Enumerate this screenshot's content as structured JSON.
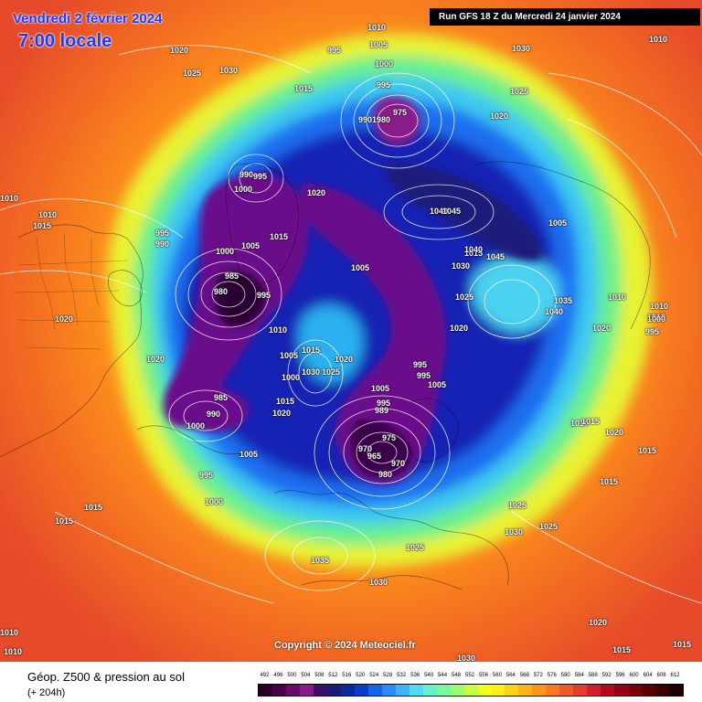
{
  "header": {
    "date": "Vendredi 2 février 2024",
    "hour": "7:00 locale",
    "run": "Run GFS 18 Z du Mercredi 24 janvier 2024"
  },
  "copyright": "Copyright © 2024 Meteociel.fr",
  "footer": {
    "title": "Géop. Z500 & pression au sol",
    "lead": "(+ 204h)"
  },
  "legend": {
    "labels": [
      "492",
      "496",
      "500",
      "504",
      "508",
      "512",
      "516",
      "520",
      "524",
      "528",
      "532",
      "536",
      "540",
      "544",
      "548",
      "552",
      "556",
      "560",
      "564",
      "568",
      "572",
      "576",
      "580",
      "584",
      "588",
      "592",
      "596",
      "600",
      "604",
      "608",
      "612"
    ],
    "colors": [
      "#2a0026",
      "#4a0048",
      "#6a0a6a",
      "#8a1a8a",
      "#3c0f6a",
      "#1a1a7a",
      "#0a2aa0",
      "#0a3ccc",
      "#1464f0",
      "#2a8cff",
      "#3cb4ff",
      "#50dcf0",
      "#64f0d2",
      "#78faa0",
      "#9aff6e",
      "#c8ff3c",
      "#f0ff1e",
      "#fff014",
      "#ffd214",
      "#ffb414",
      "#ff9614",
      "#ff781e",
      "#f05a28",
      "#e63c28",
      "#d21e28",
      "#b40a1e",
      "#960014",
      "#78000a",
      "#5a0000",
      "#3c0000",
      "#1e0000"
    ]
  },
  "pressure_labels": [
    {
      "text": "1010"
    },
    {
      "text": "1005"
    },
    {
      "text": "995"
    },
    {
      "text": "1030"
    },
    {
      "text": "1010"
    },
    {
      "text": "1020"
    },
    {
      "text": "1025"
    },
    {
      "text": "1030"
    },
    {
      "text": "1015"
    },
    {
      "text": "1000"
    },
    {
      "text": "995"
    },
    {
      "text": "9901980"
    },
    {
      "text": "975"
    },
    {
      "text": "1025"
    },
    {
      "text": "1020"
    },
    {
      "text": "990"
    },
    {
      "text": "995"
    },
    {
      "text": "1000"
    },
    {
      "text": "1020"
    },
    {
      "text": "1010"
    },
    {
      "text": "1010"
    },
    {
      "text": "1015"
    },
    {
      "text": "1015"
    },
    {
      "text": "1040"
    },
    {
      "text": "1045"
    },
    {
      "text": "995"
    },
    {
      "text": "990"
    },
    {
      "text": "1005"
    },
    {
      "text": "1015"
    },
    {
      "text": "1040"
    },
    {
      "text": "1045"
    },
    {
      "text": "1030"
    },
    {
      "text": "1000"
    },
    {
      "text": "1005"
    },
    {
      "text": "1005"
    },
    {
      "text": "985"
    },
    {
      "text": "980"
    },
    {
      "text": "995"
    },
    {
      "text": "1025"
    },
    {
      "text": "1035"
    },
    {
      "text": "1010"
    },
    {
      "text": "1020"
    },
    {
      "text": "1040"
    },
    {
      "text": "1010"
    },
    {
      "text": "1010"
    },
    {
      "text": "1000"
    },
    {
      "text": "995"
    },
    {
      "text": "1020"
    },
    {
      "text": "1020"
    },
    {
      "text": "1010"
    },
    {
      "text": "1020"
    },
    {
      "text": "1005"
    },
    {
      "text": "1015"
    },
    {
      "text": "1030"
    },
    {
      "text": "1025"
    },
    {
      "text": "1020"
    },
    {
      "text": "1005"
    },
    {
      "text": "995"
    },
    {
      "text": "1000"
    },
    {
      "text": "995"
    },
    {
      "text": "985"
    },
    {
      "text": "990"
    },
    {
      "text": "1015"
    },
    {
      "text": "1020"
    },
    {
      "text": "1005"
    },
    {
      "text": "995"
    },
    {
      "text": "989"
    },
    {
      "text": "975"
    },
    {
      "text": "970"
    },
    {
      "text": "965"
    },
    {
      "text": "970"
    },
    {
      "text": "980"
    },
    {
      "text": "1010"
    },
    {
      "text": "1015"
    },
    {
      "text": "1020"
    },
    {
      "text": "1000"
    },
    {
      "text": "1005"
    },
    {
      "text": "995"
    },
    {
      "text": "1015"
    },
    {
      "text": "1015"
    },
    {
      "text": "1015"
    },
    {
      "text": "1000"
    },
    {
      "text": "1025"
    },
    {
      "text": "1030"
    },
    {
      "text": "1025"
    },
    {
      "text": "1025"
    },
    {
      "text": "1035"
    },
    {
      "text": "1030"
    },
    {
      "text": "1015"
    },
    {
      "text": "1020"
    },
    {
      "text": "1010"
    },
    {
      "text": "1010"
    },
    {
      "text": "1030"
    },
    {
      "text": "1015"
    },
    {
      "text": "1015"
    }
  ]
}
